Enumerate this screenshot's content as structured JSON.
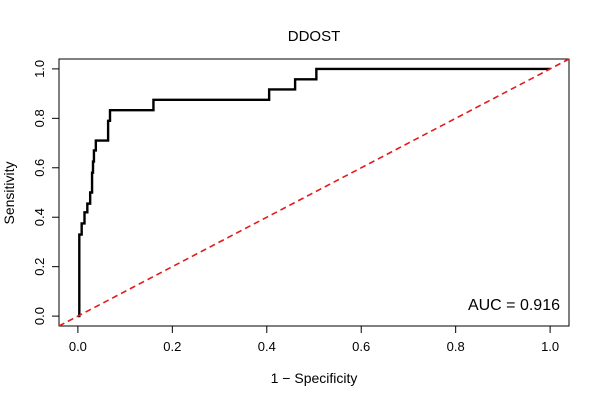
{
  "chart_data": {
    "type": "line",
    "title": "DDOST",
    "xlabel": "1 − Specificity",
    "ylabel": "Sensitivity",
    "xlim": [
      -0.04,
      1.04
    ],
    "ylim": [
      -0.04,
      1.04
    ],
    "xticks": [
      0.0,
      0.2,
      0.4,
      0.6,
      0.8,
      1.0
    ],
    "yticks": [
      0.0,
      0.2,
      0.4,
      0.6,
      0.8,
      1.0
    ],
    "xtick_labels": [
      "0.0",
      "0.2",
      "0.4",
      "0.6",
      "0.8",
      "1.0"
    ],
    "ytick_labels": [
      "0.0",
      "0.2",
      "0.4",
      "0.6",
      "0.8",
      "1.0"
    ],
    "grid": false,
    "annotation": "AUC = 0.916",
    "series": [
      {
        "color": "#000000",
        "style": "solid",
        "x": [
          0,
          0.003,
          0.003,
          0.008,
          0.008,
          0.014,
          0.014,
          0.02,
          0.02,
          0.026,
          0.026,
          0.03,
          0.03,
          0.032,
          0.032,
          0.034,
          0.034,
          0.038,
          0.038,
          0.064,
          0.064,
          0.068,
          0.068,
          0.16,
          0.16,
          0.405,
          0.405,
          0.46,
          0.46,
          0.505,
          0.505,
          1.0
        ],
        "y": [
          0,
          0,
          0.33,
          0.33,
          0.375,
          0.375,
          0.42,
          0.42,
          0.455,
          0.455,
          0.5,
          0.5,
          0.58,
          0.58,
          0.625,
          0.625,
          0.67,
          0.67,
          0.71,
          0.71,
          0.79,
          0.79,
          0.833,
          0.833,
          0.875,
          0.875,
          0.917,
          0.917,
          0.958,
          0.958,
          1.0,
          1.0
        ]
      },
      {
        "color": "#e41a1c",
        "style": "dashed",
        "x": [
          -0.04,
          1.04
        ],
        "y": [
          -0.04,
          1.04
        ]
      }
    ]
  }
}
